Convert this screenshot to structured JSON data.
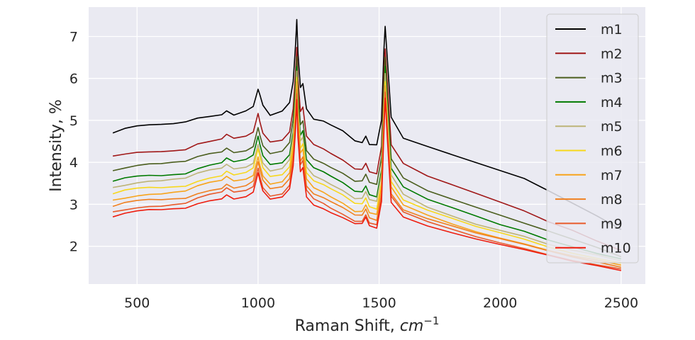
{
  "chart_data": {
    "type": "line",
    "title": "",
    "xlabel": "Raman Shift, ",
    "xlabel_unit_base": "cm",
    "xlabel_unit_exp": "−1",
    "ylabel": "Intensity, %",
    "xlim": [
      300,
      2600
    ],
    "ylim": [
      1.1,
      7.7
    ],
    "x_ticks": [
      500,
      1000,
      1500,
      2000,
      2500
    ],
    "x_tick_labels": [
      "500",
      "1000",
      "1500",
      "2000",
      "2500"
    ],
    "y_ticks": [
      2,
      3,
      4,
      5,
      6,
      7
    ],
    "y_tick_labels": [
      "2",
      "3",
      "4",
      "5",
      "6",
      "7"
    ],
    "grid": true,
    "legend_position": "top-right",
    "background_color": "#eaeaf2",
    "x": [
      400,
      450,
      500,
      550,
      600,
      650,
      700,
      750,
      800,
      850,
      870,
      900,
      950,
      980,
      1000,
      1008,
      1020,
      1050,
      1100,
      1130,
      1145,
      1155,
      1160,
      1165,
      1175,
      1185,
      1200,
      1230,
      1270,
      1300,
      1350,
      1400,
      1430,
      1445,
      1460,
      1490,
      1510,
      1520,
      1525,
      1535,
      1550,
      1600,
      1700,
      1800,
      1900,
      2000,
      2100,
      2200,
      2300,
      2400,
      2500
    ],
    "series": [
      {
        "name": "m1",
        "color": "#000000",
        "values": [
          4.7,
          4.8,
          4.85,
          4.87,
          4.88,
          4.9,
          4.95,
          5.05,
          5.1,
          5.15,
          5.25,
          5.15,
          5.25,
          5.35,
          5.75,
          5.6,
          5.35,
          5.1,
          5.2,
          5.4,
          5.9,
          6.8,
          7.4,
          6.6,
          5.8,
          5.9,
          5.3,
          5.05,
          5.0,
          4.9,
          4.75,
          4.5,
          4.45,
          4.6,
          4.4,
          4.4,
          5.0,
          6.7,
          7.25,
          6.4,
          5.1,
          4.6,
          4.4,
          4.2,
          4.0,
          3.8,
          3.6,
          3.3,
          3.0,
          2.7,
          2.4
        ]
      },
      {
        "name": "m2",
        "color": "#a01818",
        "values": [
          4.15,
          4.2,
          4.25,
          4.27,
          4.28,
          4.3,
          4.32,
          4.45,
          4.5,
          4.55,
          4.65,
          4.55,
          4.6,
          4.7,
          5.15,
          4.95,
          4.7,
          4.5,
          4.55,
          4.75,
          5.3,
          6.2,
          6.75,
          6.0,
          5.2,
          5.3,
          4.6,
          4.4,
          4.3,
          4.2,
          4.05,
          3.85,
          3.85,
          4.0,
          3.8,
          3.75,
          4.4,
          6.1,
          6.7,
          5.8,
          4.4,
          3.95,
          3.65,
          3.45,
          3.25,
          3.05,
          2.85,
          2.6,
          2.4,
          2.15,
          1.9
        ]
      },
      {
        "name": "m3",
        "color": "#4b5e1e",
        "values": [
          3.8,
          3.87,
          3.92,
          3.95,
          3.95,
          3.98,
          4.0,
          4.12,
          4.2,
          4.25,
          4.35,
          4.25,
          4.3,
          4.4,
          4.85,
          4.65,
          4.4,
          4.2,
          4.25,
          4.45,
          5.0,
          5.9,
          6.5,
          5.7,
          4.9,
          5.0,
          4.3,
          4.1,
          4.0,
          3.9,
          3.75,
          3.55,
          3.55,
          3.7,
          3.5,
          3.45,
          4.1,
          5.8,
          6.5,
          5.5,
          4.1,
          3.65,
          3.35,
          3.15,
          2.95,
          2.75,
          2.55,
          2.35,
          2.15,
          1.95,
          1.75
        ]
      },
      {
        "name": "m4",
        "color": "#007a00",
        "values": [
          3.55,
          3.62,
          3.67,
          3.7,
          3.7,
          3.73,
          3.75,
          3.87,
          3.95,
          4.0,
          4.1,
          4.0,
          4.05,
          4.15,
          4.6,
          4.4,
          4.15,
          3.95,
          4.0,
          4.2,
          4.75,
          5.65,
          6.3,
          5.45,
          4.65,
          4.75,
          4.05,
          3.85,
          3.75,
          3.65,
          3.5,
          3.3,
          3.3,
          3.45,
          3.25,
          3.2,
          3.85,
          5.55,
          6.3,
          5.25,
          3.85,
          3.4,
          3.1,
          2.9,
          2.7,
          2.5,
          2.35,
          2.15,
          2.0,
          1.85,
          1.7
        ]
      },
      {
        "name": "m5",
        "color": "#bdb478",
        "values": [
          3.4,
          3.47,
          3.52,
          3.55,
          3.55,
          3.58,
          3.6,
          3.72,
          3.8,
          3.85,
          3.95,
          3.85,
          3.9,
          4.0,
          4.45,
          4.25,
          4.0,
          3.8,
          3.85,
          4.05,
          4.6,
          5.5,
          6.15,
          5.3,
          4.5,
          4.6,
          3.9,
          3.7,
          3.6,
          3.5,
          3.35,
          3.15,
          3.15,
          3.3,
          3.1,
          3.05,
          3.7,
          5.4,
          6.1,
          5.1,
          3.7,
          3.25,
          2.95,
          2.75,
          2.55,
          2.4,
          2.25,
          2.05,
          1.9,
          1.78,
          1.65
        ]
      },
      {
        "name": "m6",
        "color": "#f7d81c",
        "values": [
          3.25,
          3.32,
          3.37,
          3.4,
          3.4,
          3.43,
          3.45,
          3.57,
          3.65,
          3.7,
          3.8,
          3.7,
          3.75,
          3.85,
          4.3,
          4.1,
          3.85,
          3.65,
          3.7,
          3.9,
          4.45,
          5.35,
          6.05,
          5.15,
          4.35,
          4.45,
          3.75,
          3.55,
          3.45,
          3.35,
          3.2,
          3.0,
          3.0,
          3.15,
          2.95,
          2.9,
          3.55,
          5.25,
          5.95,
          4.95,
          3.55,
          3.1,
          2.85,
          2.65,
          2.45,
          2.3,
          2.15,
          1.97,
          1.83,
          1.72,
          1.6
        ]
      },
      {
        "name": "m7",
        "color": "#f7a41c",
        "values": [
          3.1,
          3.17,
          3.22,
          3.25,
          3.25,
          3.28,
          3.3,
          3.42,
          3.5,
          3.55,
          3.65,
          3.55,
          3.6,
          3.7,
          4.15,
          3.95,
          3.7,
          3.5,
          3.55,
          3.75,
          4.3,
          5.2,
          5.9,
          5.0,
          4.2,
          4.3,
          3.6,
          3.4,
          3.3,
          3.2,
          3.05,
          2.85,
          2.85,
          3.0,
          2.8,
          2.75,
          3.4,
          5.1,
          5.8,
          4.8,
          3.4,
          2.98,
          2.75,
          2.55,
          2.37,
          2.22,
          2.08,
          1.92,
          1.78,
          1.67,
          1.55
        ]
      },
      {
        "name": "m8",
        "color": "#f08020",
        "values": [
          2.95,
          3.02,
          3.07,
          3.1,
          3.1,
          3.13,
          3.15,
          3.27,
          3.35,
          3.4,
          3.5,
          3.4,
          3.45,
          3.55,
          4.0,
          3.8,
          3.55,
          3.35,
          3.4,
          3.6,
          4.15,
          5.05,
          5.75,
          4.85,
          4.05,
          4.15,
          3.45,
          3.25,
          3.15,
          3.05,
          2.9,
          2.72,
          2.72,
          2.87,
          2.67,
          2.62,
          3.27,
          4.95,
          5.7,
          4.7,
          3.27,
          2.88,
          2.66,
          2.48,
          2.3,
          2.16,
          2.02,
          1.87,
          1.73,
          1.62,
          1.5
        ]
      },
      {
        "name": "m9",
        "color": "#e85a2a",
        "values": [
          2.82,
          2.89,
          2.94,
          2.97,
          2.97,
          3.0,
          3.02,
          3.14,
          3.22,
          3.27,
          3.37,
          3.27,
          3.32,
          3.42,
          3.87,
          3.67,
          3.42,
          3.22,
          3.27,
          3.47,
          4.02,
          4.92,
          5.62,
          4.72,
          3.92,
          4.02,
          3.32,
          3.12,
          3.02,
          2.92,
          2.78,
          2.62,
          2.62,
          2.77,
          2.57,
          2.52,
          3.17,
          4.85,
          5.65,
          4.6,
          3.17,
          2.8,
          2.58,
          2.41,
          2.24,
          2.1,
          1.97,
          1.82,
          1.68,
          1.57,
          1.46
        ]
      },
      {
        "name": "m10",
        "color": "#ee1c0e",
        "values": [
          2.7,
          2.77,
          2.82,
          2.85,
          2.85,
          2.88,
          2.9,
          3.02,
          3.1,
          3.15,
          3.25,
          3.15,
          3.2,
          3.3,
          3.75,
          3.55,
          3.3,
          3.1,
          3.15,
          3.35,
          3.9,
          4.8,
          5.5,
          4.6,
          3.8,
          3.9,
          3.2,
          3.0,
          2.9,
          2.8,
          2.67,
          2.52,
          2.52,
          2.67,
          2.47,
          2.42,
          3.07,
          4.75,
          5.55,
          4.5,
          3.07,
          2.72,
          2.5,
          2.33,
          2.17,
          2.03,
          1.9,
          1.76,
          1.62,
          1.52,
          1.42
        ]
      }
    ]
  }
}
